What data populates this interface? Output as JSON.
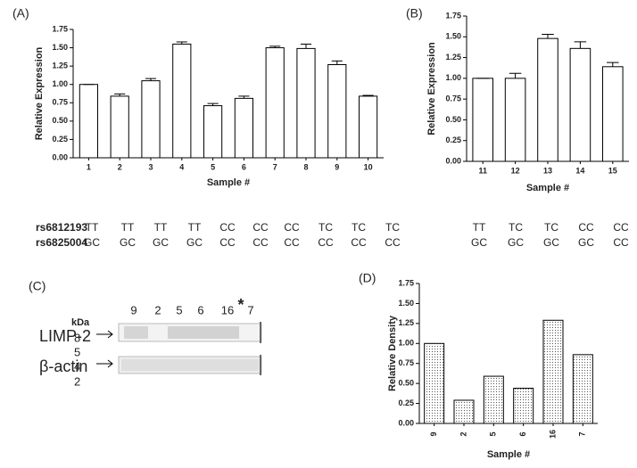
{
  "chart_data": [
    {
      "type": "bar",
      "panel": "(A)",
      "y_label": "Relative Expression",
      "x_label": "Sample #",
      "categories": [
        "1",
        "2",
        "3",
        "4",
        "5",
        "6",
        "7",
        "8",
        "9",
        "10"
      ],
      "values": [
        1.0,
        0.84,
        1.05,
        1.55,
        0.71,
        0.81,
        1.5,
        1.49,
        1.27,
        0.84
      ],
      "errors": [
        0.0,
        0.03,
        0.03,
        0.03,
        0.03,
        0.03,
        0.02,
        0.06,
        0.05,
        0.01
      ],
      "color": "#ffffff",
      "ylim": [
        0,
        1.75
      ],
      "yticks": [
        {
          "value": 0,
          "label": "0.00"
        },
        {
          "value": 0.25,
          "label": "0.25"
        },
        {
          "value": 0.5,
          "label": "0.50"
        },
        {
          "value": 0.75,
          "label": "0.75"
        },
        {
          "value": 1,
          "label": "1.00"
        },
        {
          "value": 1.25,
          "label": "1.25"
        },
        {
          "value": 1.5,
          "label": "1.50"
        },
        {
          "value": 1.75,
          "label": "1.75"
        }
      ]
    },
    {
      "type": "bar",
      "panel": "(B)",
      "y_label": "Relative Expression",
      "x_label": "Sample #",
      "categories": [
        "11",
        "12",
        "13",
        "14",
        "15"
      ],
      "values": [
        1.0,
        1.0,
        1.48,
        1.36,
        1.14
      ],
      "errors": [
        0.0,
        0.06,
        0.05,
        0.08,
        0.05
      ],
      "color": "#ffffff",
      "ylim": [
        0,
        1.75
      ],
      "yticks": [
        {
          "value": 0,
          "label": "0.00"
        },
        {
          "value": 0.25,
          "label": "0.25"
        },
        {
          "value": 0.5,
          "label": "0.50"
        },
        {
          "value": 0.75,
          "label": "0.75"
        },
        {
          "value": 1,
          "label": "1.00"
        },
        {
          "value": 1.25,
          "label": "1.25"
        },
        {
          "value": 1.5,
          "label": "1.50"
        },
        {
          "value": 1.75,
          "label": "1.75"
        }
      ]
    },
    {
      "type": "bar",
      "panel": "(D)",
      "y_label": "Relative Density",
      "x_label": "Sample #",
      "categories": [
        "9",
        "2",
        "5",
        "6",
        "16",
        "7"
      ],
      "values": [
        1.0,
        0.29,
        0.59,
        0.44,
        1.29,
        0.86
      ],
      "color": "#ffffff",
      "hatch": "dots",
      "ylim": [
        0,
        1.75
      ],
      "yticks": [
        {
          "value": 0,
          "label": "0.00"
        },
        {
          "value": 0.25,
          "label": "0.25"
        },
        {
          "value": 0.5,
          "label": "0.50"
        },
        {
          "value": 0.75,
          "label": "0.75"
        },
        {
          "value": 1,
          "label": "1.00"
        },
        {
          "value": 1.25,
          "label": "1.25"
        },
        {
          "value": 1.5,
          "label": "1.50"
        },
        {
          "value": 1.75,
          "label": "1.75"
        }
      ]
    }
  ],
  "genotypes": {
    "rows": [
      {
        "snp": "rs6812193",
        "a": [
          "TT",
          "TT",
          "TT",
          "TT",
          "CC",
          "CC",
          "CC",
          "TC",
          "TC",
          "TC"
        ],
        "b": [
          "TT",
          "TC",
          "TC",
          "CC",
          "CC"
        ]
      },
      {
        "snp": "rs6825004",
        "a": [
          "GC",
          "GC",
          "GC",
          "GC",
          "CC",
          "CC",
          "CC",
          "CC",
          "CC",
          "CC"
        ],
        "b": [
          "GC",
          "GC",
          "GC",
          "GC",
          "CC"
        ]
      }
    ]
  },
  "blot": {
    "panel": "(C)",
    "lanes": [
      "9",
      "2",
      "5",
      "6",
      "16",
      "7"
    ],
    "star": "*",
    "kda": "kDa",
    "bands": [
      "LIMP-2",
      "β-actin"
    ],
    "markers": [
      "8",
      "5",
      "4",
      "2"
    ]
  }
}
